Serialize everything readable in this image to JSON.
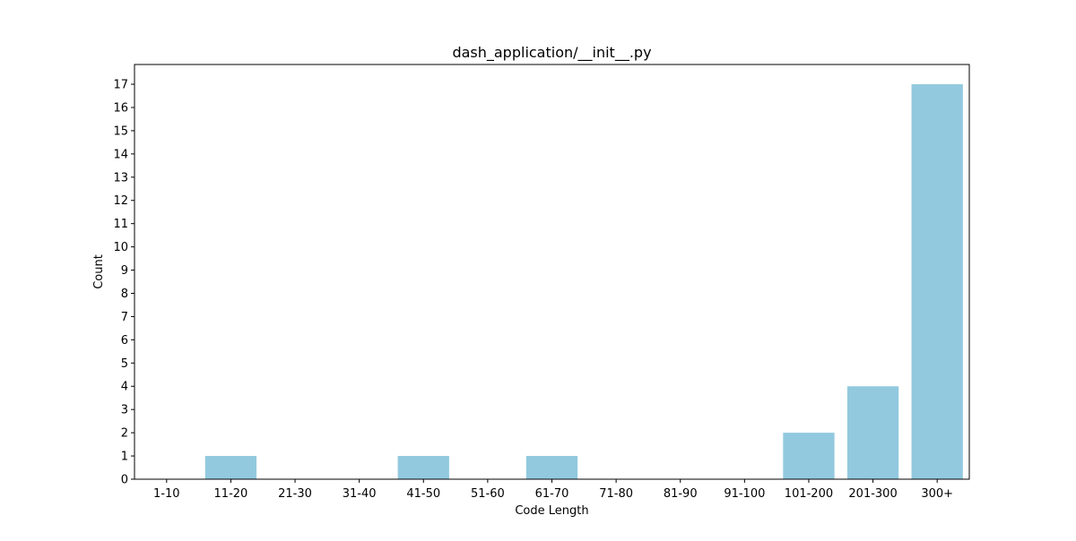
{
  "chart_data": {
    "type": "bar",
    "title": "dash_application/__init__.py",
    "xlabel": "Code Length",
    "ylabel": "Count",
    "categories": [
      "1-10",
      "11-20",
      "21-30",
      "31-40",
      "41-50",
      "51-60",
      "61-70",
      "71-80",
      "81-90",
      "91-100",
      "101-200",
      "201-300",
      "300+"
    ],
    "values": [
      0,
      1,
      0,
      0,
      1,
      0,
      1,
      0,
      0,
      0,
      2,
      4,
      17
    ],
    "ylim": [
      0,
      17.85
    ],
    "yticks": [
      0,
      1,
      2,
      3,
      4,
      5,
      6,
      7,
      8,
      9,
      10,
      11,
      12,
      13,
      14,
      15,
      16,
      17
    ],
    "bar_color": "#92c9df",
    "grid": false,
    "legend": "none"
  }
}
